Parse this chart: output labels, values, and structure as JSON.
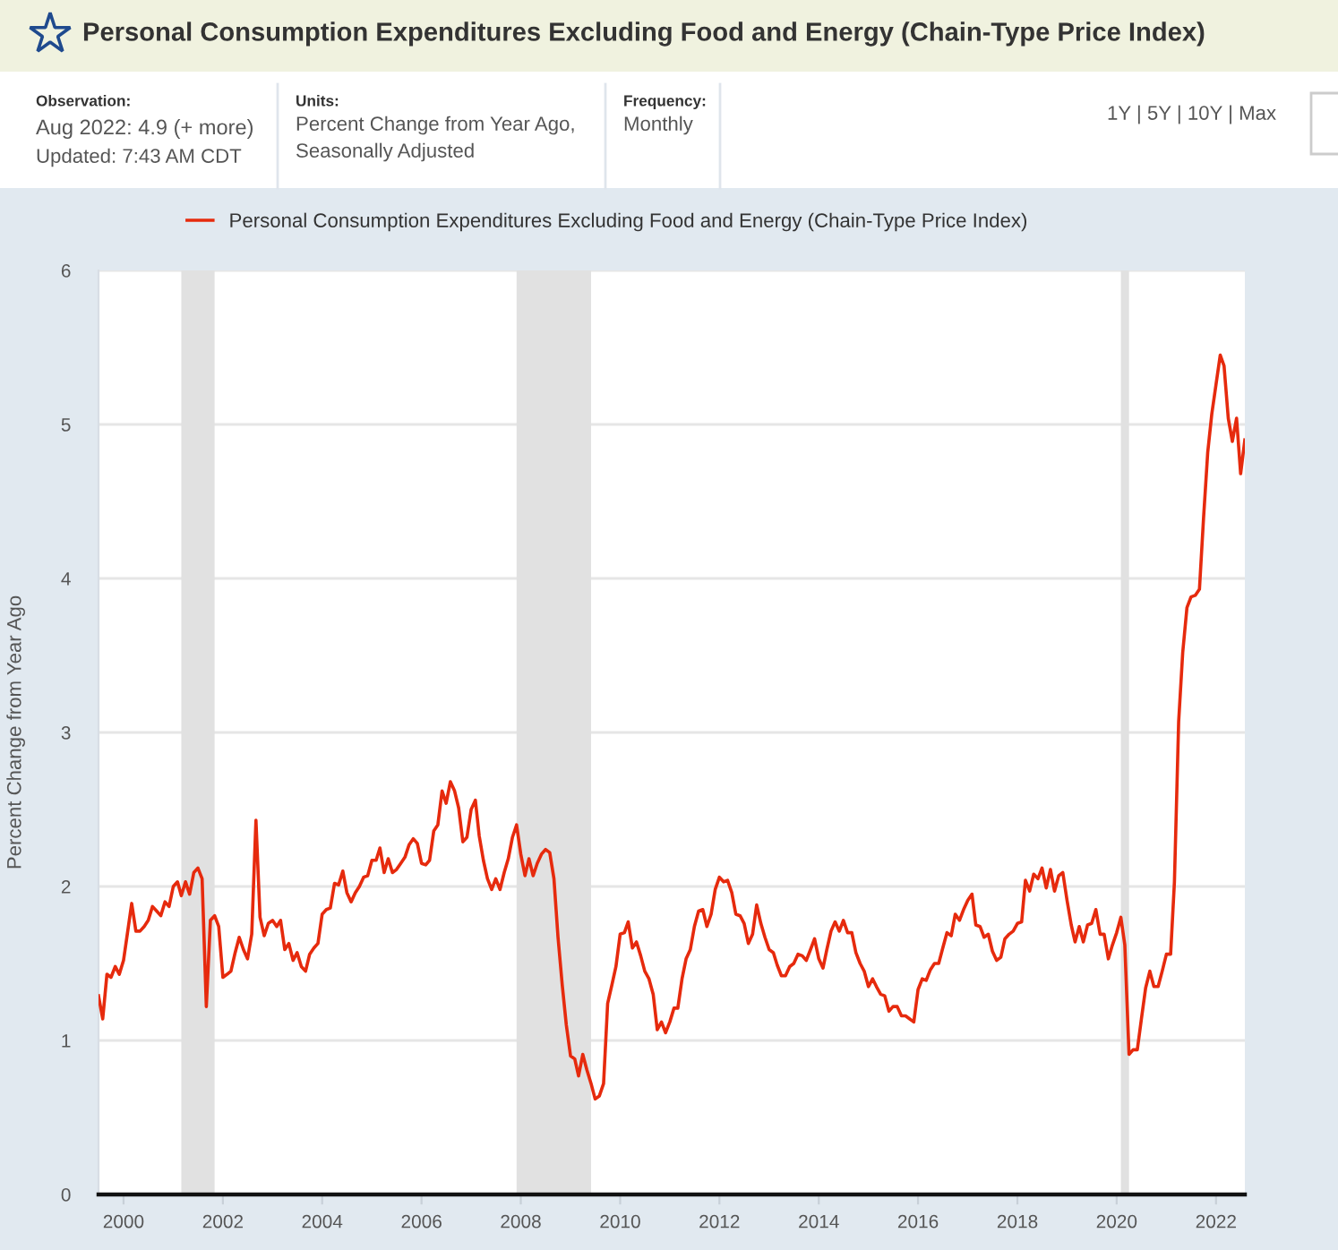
{
  "chart_data": {
    "type": "line",
    "title": "Personal Consumption Expenditures Excluding Food and Energy (Chain-Type Price Index)",
    "ylabel": "Percent Change from Year Ago",
    "annotations": [
      "Observation:",
      "Aug 2022: 4.9 (+ more)",
      "Updated: 7:43 AM CDT",
      "Units:",
      "Percent Change from Year Ago,",
      "Seasonally Adjusted",
      "Frequency:",
      "Monthly",
      "1Y | 5Y | 10Y | Max"
    ],
    "x": [
      "1999-07",
      "1999-08",
      "1999-09",
      "1999-10",
      "1999-11",
      "1999-12",
      "2000-01",
      "2000-02",
      "2000-03",
      "2000-04",
      "2000-05",
      "2000-06",
      "2000-07",
      "2000-08",
      "2000-09",
      "2000-10",
      "2000-11",
      "2000-12",
      "2001-01",
      "2001-02",
      "2001-03",
      "2001-04",
      "2001-05",
      "2001-06",
      "2001-07",
      "2001-08",
      "2001-09",
      "2001-10",
      "2001-11",
      "2001-12",
      "2002-01",
      "2002-02",
      "2002-03",
      "2002-04",
      "2002-05",
      "2002-06",
      "2002-07",
      "2002-08",
      "2002-09",
      "2002-10",
      "2002-11",
      "2002-12",
      "2003-01",
      "2003-02",
      "2003-03",
      "2003-04",
      "2003-05",
      "2003-06",
      "2003-07",
      "2003-08",
      "2003-09",
      "2003-10",
      "2003-11",
      "2003-12",
      "2004-01",
      "2004-02",
      "2004-03",
      "2004-04",
      "2004-05",
      "2004-06",
      "2004-07",
      "2004-08",
      "2004-09",
      "2004-10",
      "2004-11",
      "2004-12",
      "2005-01",
      "2005-02",
      "2005-03",
      "2005-04",
      "2005-05",
      "2005-06",
      "2005-07",
      "2005-08",
      "2005-09",
      "2005-10",
      "2005-11",
      "2005-12",
      "2006-01",
      "2006-02",
      "2006-03",
      "2006-04",
      "2006-05",
      "2006-06",
      "2006-07",
      "2006-08",
      "2006-09",
      "2006-10",
      "2006-11",
      "2006-12",
      "2007-01",
      "2007-02",
      "2007-03",
      "2007-04",
      "2007-05",
      "2007-06",
      "2007-07",
      "2007-08",
      "2007-09",
      "2007-10",
      "2007-11",
      "2007-12",
      "2008-01",
      "2008-02",
      "2008-03",
      "2008-04",
      "2008-05",
      "2008-06",
      "2008-07",
      "2008-08",
      "2008-09",
      "2008-10",
      "2008-11",
      "2008-12",
      "2009-01",
      "2009-02",
      "2009-03",
      "2009-04",
      "2009-05",
      "2009-06",
      "2009-07",
      "2009-08",
      "2009-09",
      "2009-10",
      "2009-11",
      "2009-12",
      "2010-01",
      "2010-02",
      "2010-03",
      "2010-04",
      "2010-05",
      "2010-06",
      "2010-07",
      "2010-08",
      "2010-09",
      "2010-10",
      "2010-11",
      "2010-12",
      "2011-01",
      "2011-02",
      "2011-03",
      "2011-04",
      "2011-05",
      "2011-06",
      "2011-07",
      "2011-08",
      "2011-09",
      "2011-10",
      "2011-11",
      "2011-12",
      "2012-01",
      "2012-02",
      "2012-03",
      "2012-04",
      "2012-05",
      "2012-06",
      "2012-07",
      "2012-08",
      "2012-09",
      "2012-10",
      "2012-11",
      "2012-12",
      "2013-01",
      "2013-02",
      "2013-03",
      "2013-04",
      "2013-05",
      "2013-06",
      "2013-07",
      "2013-08",
      "2013-09",
      "2013-10",
      "2013-11",
      "2013-12",
      "2014-01",
      "2014-02",
      "2014-03",
      "2014-04",
      "2014-05",
      "2014-06",
      "2014-07",
      "2014-08",
      "2014-09",
      "2014-10",
      "2014-11",
      "2014-12",
      "2015-01",
      "2015-02",
      "2015-03",
      "2015-04",
      "2015-05",
      "2015-06",
      "2015-07",
      "2015-08",
      "2015-09",
      "2015-10",
      "2015-11",
      "2015-12",
      "2016-01",
      "2016-02",
      "2016-03",
      "2016-04",
      "2016-05",
      "2016-06",
      "2016-07",
      "2016-08",
      "2016-09",
      "2016-10",
      "2016-11",
      "2016-12",
      "2017-01",
      "2017-02",
      "2017-03",
      "2017-04",
      "2017-05",
      "2017-06",
      "2017-07",
      "2017-08",
      "2017-09",
      "2017-10",
      "2017-11",
      "2017-12",
      "2018-01",
      "2018-02",
      "2018-03",
      "2018-04",
      "2018-05",
      "2018-06",
      "2018-07",
      "2018-08",
      "2018-09",
      "2018-10",
      "2018-11",
      "2018-12",
      "2019-01",
      "2019-02",
      "2019-03",
      "2019-04",
      "2019-05",
      "2019-06",
      "2019-07",
      "2019-08",
      "2019-09",
      "2019-10",
      "2019-11",
      "2019-12",
      "2020-01",
      "2020-02",
      "2020-03",
      "2020-04",
      "2020-05",
      "2020-06",
      "2020-07",
      "2020-08",
      "2020-09",
      "2020-10",
      "2020-11",
      "2020-12",
      "2021-01",
      "2021-02",
      "2021-03",
      "2021-04",
      "2021-05",
      "2021-06",
      "2021-07",
      "2021-08",
      "2021-09",
      "2021-10",
      "2021-11",
      "2021-12",
      "2022-01",
      "2022-02",
      "2022-03",
      "2022-04",
      "2022-05",
      "2022-06",
      "2022-07",
      "2022-08"
    ],
    "series": [
      {
        "name": "Personal Consumption Expenditures Excluding Food and Energy (Chain-Type Price Index)",
        "color": "#e62a0d",
        "values": [
          1.29,
          1.14,
          1.43,
          1.41,
          1.48,
          1.43,
          1.52,
          1.71,
          1.89,
          1.71,
          1.71,
          1.74,
          1.78,
          1.87,
          1.84,
          1.81,
          1.9,
          1.87,
          2.0,
          2.03,
          1.94,
          2.03,
          1.95,
          2.09,
          2.12,
          2.05,
          1.22,
          1.78,
          1.81,
          1.74,
          1.41,
          1.43,
          1.45,
          1.57,
          1.67,
          1.59,
          1.53,
          1.69,
          2.43,
          1.8,
          1.68,
          1.76,
          1.78,
          1.74,
          1.78,
          1.59,
          1.63,
          1.52,
          1.57,
          1.48,
          1.45,
          1.56,
          1.6,
          1.63,
          1.82,
          1.85,
          1.86,
          2.02,
          2.01,
          2.1,
          1.96,
          1.9,
          1.96,
          2.0,
          2.06,
          2.07,
          2.17,
          2.17,
          2.25,
          2.09,
          2.18,
          2.09,
          2.11,
          2.15,
          2.19,
          2.27,
          2.31,
          2.28,
          2.15,
          2.14,
          2.17,
          2.36,
          2.4,
          2.62,
          2.54,
          2.68,
          2.62,
          2.51,
          2.29,
          2.32,
          2.5,
          2.56,
          2.33,
          2.17,
          2.05,
          1.98,
          2.05,
          1.98,
          2.09,
          2.18,
          2.32,
          2.4,
          2.21,
          2.07,
          2.18,
          2.07,
          2.15,
          2.21,
          2.24,
          2.22,
          2.05,
          1.67,
          1.36,
          1.1,
          0.9,
          0.88,
          0.77,
          0.91,
          0.81,
          0.72,
          0.62,
          0.64,
          0.72,
          1.24,
          1.36,
          1.48,
          1.69,
          1.7,
          1.77,
          1.6,
          1.64,
          1.55,
          1.45,
          1.4,
          1.3,
          1.07,
          1.12,
          1.05,
          1.12,
          1.21,
          1.21,
          1.4,
          1.53,
          1.59,
          1.74,
          1.84,
          1.85,
          1.74,
          1.82,
          1.98,
          2.06,
          2.03,
          2.04,
          1.96,
          1.82,
          1.81,
          1.76,
          1.63,
          1.69,
          1.88,
          1.76,
          1.67,
          1.59,
          1.57,
          1.49,
          1.42,
          1.42,
          1.48,
          1.5,
          1.56,
          1.55,
          1.52,
          1.59,
          1.66,
          1.53,
          1.47,
          1.59,
          1.71,
          1.77,
          1.71,
          1.78,
          1.7,
          1.7,
          1.57,
          1.5,
          1.45,
          1.35,
          1.4,
          1.35,
          1.3,
          1.29,
          1.19,
          1.22,
          1.22,
          1.16,
          1.16,
          1.14,
          1.12,
          1.33,
          1.4,
          1.39,
          1.46,
          1.5,
          1.5,
          1.6,
          1.7,
          1.68,
          1.82,
          1.78,
          1.85,
          1.91,
          1.95,
          1.75,
          1.74,
          1.67,
          1.69,
          1.58,
          1.52,
          1.54,
          1.66,
          1.69,
          1.71,
          1.76,
          1.77,
          2.04,
          1.97,
          2.08,
          2.05,
          2.12,
          1.99,
          2.11,
          1.97,
          2.07,
          2.09,
          1.91,
          1.75,
          1.64,
          1.74,
          1.64,
          1.75,
          1.76,
          1.85,
          1.69,
          1.69,
          1.53,
          1.62,
          1.7,
          1.8,
          1.62,
          0.91,
          0.94,
          0.94,
          1.14,
          1.34,
          1.45,
          1.35,
          1.35,
          1.45,
          1.56,
          1.56,
          2.03,
          3.07,
          3.52,
          3.81,
          3.88,
          3.89,
          3.93,
          4.39,
          4.82,
          5.07,
          5.26,
          5.45,
          5.38,
          5.04,
          4.89,
          5.04,
          4.68,
          4.9
        ]
      }
    ],
    "xlim": [
      "1999-07-01",
      "2022-08-01"
    ],
    "xticks": [
      "2000",
      "2002",
      "2004",
      "2006",
      "2008",
      "2010",
      "2012",
      "2014",
      "2016",
      "2018",
      "2020",
      "2022"
    ],
    "ylim": [
      0,
      6
    ],
    "yticks": [
      0,
      1,
      2,
      3,
      4,
      5,
      6
    ],
    "grid": "y",
    "legend": "top left",
    "bands": [
      {
        "axis": "x",
        "from": "2001-03",
        "to": "2001-11",
        "color": "#e1e1e1"
      },
      {
        "axis": "x",
        "from": "2007-12",
        "to": "2009-06",
        "color": "#e1e1e1"
      },
      {
        "axis": "x",
        "from": "2020-02",
        "to": "2020-04",
        "color": "#e1e1e1"
      }
    ]
  }
}
